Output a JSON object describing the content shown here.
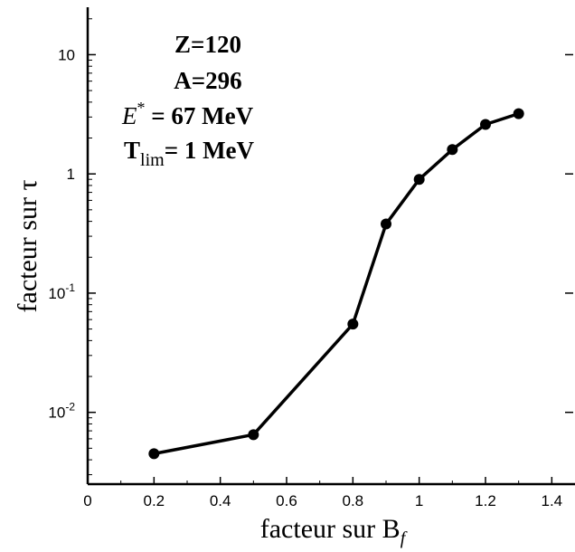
{
  "chart_data": {
    "type": "line",
    "title": "",
    "xlabel": "facteur sur B",
    "xlabel_sub": "f",
    "ylabel": "facteur sur τ",
    "x": [
      0.2,
      0.5,
      0.8,
      0.9,
      1.0,
      1.1,
      1.2,
      1.3
    ],
    "series": [
      {
        "values": [
          0.0045,
          0.0065,
          0.055,
          0.38,
          0.9,
          1.6,
          2.6,
          3.2
        ]
      }
    ],
    "xlim": [
      0,
      1.5
    ],
    "ylim": [
      0.0025,
      25
    ],
    "yscale": "log",
    "grid": false,
    "xticks": [
      "0",
      "0.2",
      "0.4",
      "0.6",
      "0.8",
      "1",
      "1.2",
      "1.4"
    ],
    "yticks": [
      {
        "base": "10",
        "exp": ""
      },
      {
        "base": "1",
        "exp": ""
      },
      {
        "base": "10",
        "exp": "-1"
      },
      {
        "base": "10",
        "exp": "-2"
      }
    ],
    "annotations": {
      "z": "Z=120",
      "a": "A=296",
      "e_sym": "E",
      "e_sup": "*",
      "e_val": " = 67 MeV",
      "t_sym": "T",
      "t_sub": "lim",
      "t_val": "= 1 MeV"
    },
    "colors": {
      "line": "#000000",
      "marker": "#000000"
    }
  }
}
